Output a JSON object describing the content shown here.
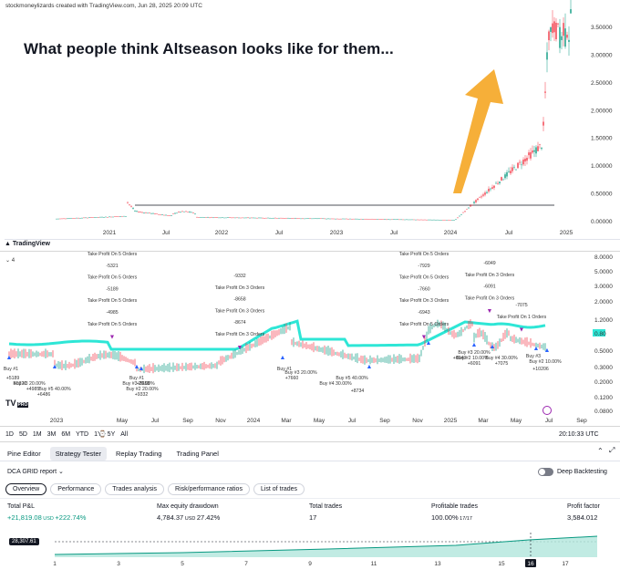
{
  "watermark": "stockmoneylizards created with TradingView.com, Jun 28, 2025 20:09 UTC",
  "headline": "What people think Altseason looks like for them...",
  "top_chart": {
    "y_ticks": [
      "3.50000",
      "3.00000",
      "2.50000",
      "2.00000",
      "1.50000",
      "1.00000",
      "0.50000",
      "0.00000"
    ],
    "x_ticks": [
      "2021",
      "Jul",
      "2022",
      "Jul",
      "2023",
      "Jul",
      "2024",
      "Jul",
      "2025"
    ]
  },
  "tradingview_label": "TradingView",
  "pane_label": "4",
  "strategy_chart": {
    "y_ticks": [
      "8.0000",
      "5.0000",
      "3.0000",
      "2.0000",
      "1.2000",
      "0.80",
      "0.5000",
      "0.3000",
      "0.2000",
      "0.1200",
      "0.0800"
    ],
    "x_ticks": [
      "2023",
      "May",
      "Jul",
      "Sep",
      "Nov",
      "2024",
      "Mar",
      "May",
      "Jul",
      "Sep",
      "Nov",
      "2025",
      "Mar",
      "May",
      "Jul",
      "Sep"
    ],
    "tp_groups": [
      {
        "lines": [
          "Take Profit On 5 Orders",
          "-5321",
          "Take Profit On 5 Orders",
          "-5189",
          "Take Profit On 5 Orders",
          "-4985",
          "Take Profit On 5 Orders"
        ]
      },
      {
        "lines": [
          "-9332",
          "Take Profit On 3 Orders",
          "-8658",
          "Take Profit On 3 Orders",
          "-8674",
          "Take Profit On 3 Orders"
        ]
      },
      {
        "lines": [
          "Take Profit On 5 Orders",
          "-7929",
          "Take Profit On 5 Orders",
          "-7660",
          "Take Profit On 3 Orders",
          "-6943",
          "Take Profit On 5 Orders"
        ]
      },
      {
        "lines": [
          "-6049",
          "Take Profit On 3 Orders",
          "-6091",
          "Take Profit On 3 Orders"
        ]
      },
      {
        "lines": [
          "-7075",
          "Take Profit On 1 Orders"
        ]
      }
    ],
    "buy_labels": [
      "Buy #1",
      "+5189",
      "Buy #3 20.00%",
      "+5321",
      "Buy #5 40.00%",
      "+4985",
      "+6486",
      "Buy #1",
      "Buy #3 20.00%",
      "+8658",
      "Buy #2 20.00%",
      "+9332",
      "Buy #1",
      "Buy #3 20.00%",
      "+7660",
      "Buy #5 40.00%",
      "Buy #4 30.00%",
      "+8734",
      "Buy #3 20.00%",
      "Buy #2 10.00%",
      "+6049",
      "+6091",
      "Buy #4 30.00%",
      "+7075",
      "Buy #3",
      "Buy #2 10.00%",
      "+10206"
    ],
    "last_price": "0.80"
  },
  "range_bar": {
    "items": [
      "1D",
      "5D",
      "1M",
      "3M",
      "6M",
      "YTD",
      "1Y",
      "5Y",
      "All"
    ],
    "time": "20:10:33 UTC"
  },
  "tabs": [
    "Pine Editor",
    "Strategy Tester",
    "Replay Trading",
    "Trading Panel"
  ],
  "report": {
    "name": "DCA GRID report",
    "subtabs": [
      "Overview",
      "Performance",
      "Trades analysis",
      "Risk/performance ratios",
      "List of trades"
    ],
    "deep_backtesting": "Deep Backtesting"
  },
  "metrics": [
    {
      "label": "Total P&L",
      "value": "+21,819.08",
      "unit": "USD",
      "extra": "+222.74%"
    },
    {
      "label": "Max equity drawdown",
      "value": "4,784.37",
      "unit": "USD",
      "extra": "27.42%"
    },
    {
      "label": "Total trades",
      "value": "17",
      "unit": "",
      "extra": ""
    },
    {
      "label": "Profitable trades",
      "value": "100.00%",
      "unit": "",
      "extra": "17/17"
    },
    {
      "label": "Profit factor",
      "value": "3,584.012",
      "unit": "",
      "extra": ""
    }
  ],
  "equity": {
    "value_tag": "28,307.61",
    "x_ticks": [
      "1",
      "3",
      "5",
      "7",
      "9",
      "11",
      "13",
      "15",
      "16",
      "17"
    ],
    "highlight": "16"
  },
  "colors": {
    "accent_green": "#089981",
    "teal_line": "#2ee6d6",
    "arrow_orange": "#f5a623",
    "buy_blue": "#2962ff",
    "tp_purple": "#9c27b0"
  }
}
